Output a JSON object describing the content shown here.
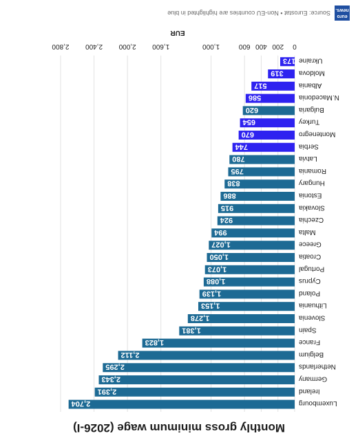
{
  "colors": {
    "eu_bar": "#1d6a94",
    "non_eu_bar": "#2e22f0",
    "grid": "#e2e2e2",
    "label": "#1c1c1c"
  },
  "logo_text": "euro news.",
  "source": "Source: Eurostat • Non-EU countries are highlighted in blue",
  "chart_data": {
    "type": "bar",
    "orientation": "horizontal",
    "title": "Monthly gross minimum wage (2026-I)",
    "xlabel": "EUR",
    "xlim": [
      0,
      2800
    ],
    "xticks": [
      0,
      200,
      400,
      600,
      1000,
      1600,
      2000,
      2400,
      2800
    ],
    "xtick_labels": [
      "0",
      "200",
      "400",
      "600",
      "1,000",
      "1,600",
      "2,000",
      "2,400",
      "2,800"
    ],
    "grid": true,
    "bars": [
      {
        "country": "Luxembourg",
        "value": 2704,
        "label": "2,704",
        "non_eu": false
      },
      {
        "country": "Ireland",
        "value": 2391,
        "label": "2,391",
        "non_eu": false
      },
      {
        "country": "Germany",
        "value": 2343,
        "label": "2,343",
        "non_eu": false
      },
      {
        "country": "Netherlands",
        "value": 2295,
        "label": "2,295",
        "non_eu": false
      },
      {
        "country": "Belgium",
        "value": 2112,
        "label": "2,112",
        "non_eu": false
      },
      {
        "country": "France",
        "value": 1823,
        "label": "1,823",
        "non_eu": false
      },
      {
        "country": "Spain",
        "value": 1381,
        "label": "1,381",
        "non_eu": false
      },
      {
        "country": "Slovenia",
        "value": 1278,
        "label": "1,278",
        "non_eu": false
      },
      {
        "country": "Lithuania",
        "value": 1153,
        "label": "1,153",
        "non_eu": false
      },
      {
        "country": "Poland",
        "value": 1139,
        "label": "1,139",
        "non_eu": false
      },
      {
        "country": "Cyprus",
        "value": 1088,
        "label": "1,088",
        "non_eu": false
      },
      {
        "country": "Portugal",
        "value": 1073,
        "label": "1,073",
        "non_eu": false
      },
      {
        "country": "Croatia",
        "value": 1050,
        "label": "1,050",
        "non_eu": false
      },
      {
        "country": "Greece",
        "value": 1027,
        "label": "1,027",
        "non_eu": false
      },
      {
        "country": "Malta",
        "value": 994,
        "label": "994",
        "non_eu": false
      },
      {
        "country": "Czechia",
        "value": 924,
        "label": "924",
        "non_eu": false
      },
      {
        "country": "Slovakia",
        "value": 915,
        "label": "915",
        "non_eu": false
      },
      {
        "country": "Estonia",
        "value": 886,
        "label": "886",
        "non_eu": false
      },
      {
        "country": "Hungary",
        "value": 838,
        "label": "838",
        "non_eu": false
      },
      {
        "country": "Romania",
        "value": 795,
        "label": "795",
        "non_eu": false
      },
      {
        "country": "Latvia",
        "value": 780,
        "label": "780",
        "non_eu": false
      },
      {
        "country": "Serbia",
        "value": 744,
        "label": "744",
        "non_eu": true
      },
      {
        "country": "Montenegro",
        "value": 670,
        "label": "670",
        "non_eu": true
      },
      {
        "country": "Turkey",
        "value": 654,
        "label": "654",
        "non_eu": true
      },
      {
        "country": "Bulgaria",
        "value": 620,
        "label": "620",
        "non_eu": false
      },
      {
        "country": "N.Macedonia",
        "value": 586,
        "label": "586",
        "non_eu": true
      },
      {
        "country": "Albania",
        "value": 517,
        "label": "517",
        "non_eu": true
      },
      {
        "country": "Moldova",
        "value": 319,
        "label": "319",
        "non_eu": true
      },
      {
        "country": "Ukraine",
        "value": 173,
        "label": "173",
        "non_eu": true
      }
    ]
  }
}
